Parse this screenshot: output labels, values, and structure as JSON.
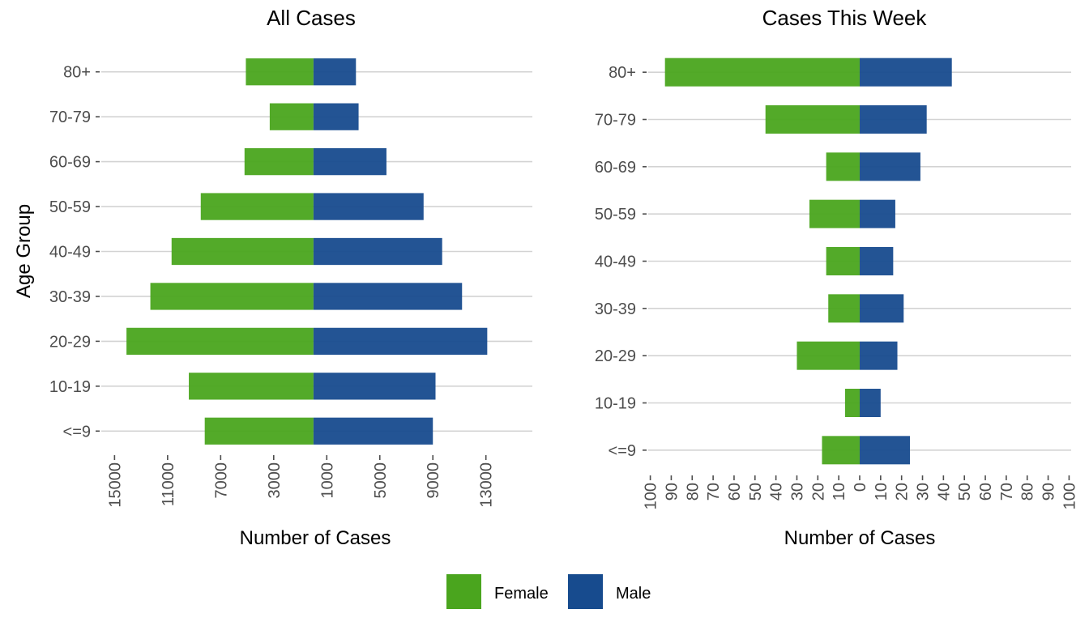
{
  "y_axis_title": "Age Group",
  "legend": {
    "items": [
      {
        "label": "Female",
        "color": "#4aa51e"
      },
      {
        "label": "Male",
        "color": "#174b8e"
      }
    ]
  },
  "chart_data": [
    {
      "type": "bar",
      "orientation": "horizontal-diverging",
      "title": "All Cases",
      "xlabel": "Number of Cases",
      "ylabel": "Age Group",
      "categories": [
        "<=9",
        "10-19",
        "20-29",
        "30-39",
        "40-49",
        "50-59",
        "60-69",
        "70-79",
        "80+"
      ],
      "x_tick_values": [
        -15000,
        -11000,
        -7000,
        -3000,
        1000,
        5000,
        9000,
        13000
      ],
      "x_tick_labels": [
        "15000",
        "11000",
        "7000",
        "3000",
        "1000",
        "5000",
        "9000",
        "13000"
      ],
      "xlim": [
        -16000,
        16500
      ],
      "series": [
        {
          "name": "Female",
          "values": [
            8200,
            9400,
            14100,
            12300,
            10700,
            8500,
            5200,
            3300,
            5100
          ]
        },
        {
          "name": "Male",
          "values": [
            9000,
            9200,
            13100,
            11200,
            9700,
            8300,
            5500,
            3400,
            3200
          ]
        }
      ],
      "grid": {
        "horizontal": true,
        "vertical": false
      },
      "legend": "bottom"
    },
    {
      "type": "bar",
      "orientation": "horizontal-diverging",
      "title": "Cases This Week",
      "xlabel": "Number of Cases",
      "ylabel": "",
      "categories": [
        "<=9",
        "10-19",
        "20-29",
        "30-39",
        "40-49",
        "50-59",
        "60-69",
        "70-79",
        "80+"
      ],
      "x_tick_values": [
        -100,
        -90,
        -80,
        -70,
        -60,
        -50,
        -40,
        -30,
        -20,
        -10,
        0,
        10,
        20,
        30,
        40,
        50,
        60,
        70,
        80,
        90,
        100
      ],
      "x_tick_labels": [
        "100",
        "90",
        "80",
        "70",
        "60",
        "50",
        "40",
        "30",
        "20",
        "10",
        "0",
        "10",
        "20",
        "30",
        "40",
        "50",
        "60",
        "70",
        "80",
        "90",
        "100"
      ],
      "xlim": [
        -101,
        101
      ],
      "series": [
        {
          "name": "Female",
          "values": [
            18,
            7,
            30,
            15,
            16,
            24,
            16,
            45,
            93
          ]
        },
        {
          "name": "Male",
          "values": [
            24,
            10,
            18,
            21,
            16,
            17,
            29,
            32,
            44
          ]
        }
      ],
      "grid": {
        "horizontal": true,
        "vertical": false
      },
      "legend": "bottom"
    }
  ]
}
